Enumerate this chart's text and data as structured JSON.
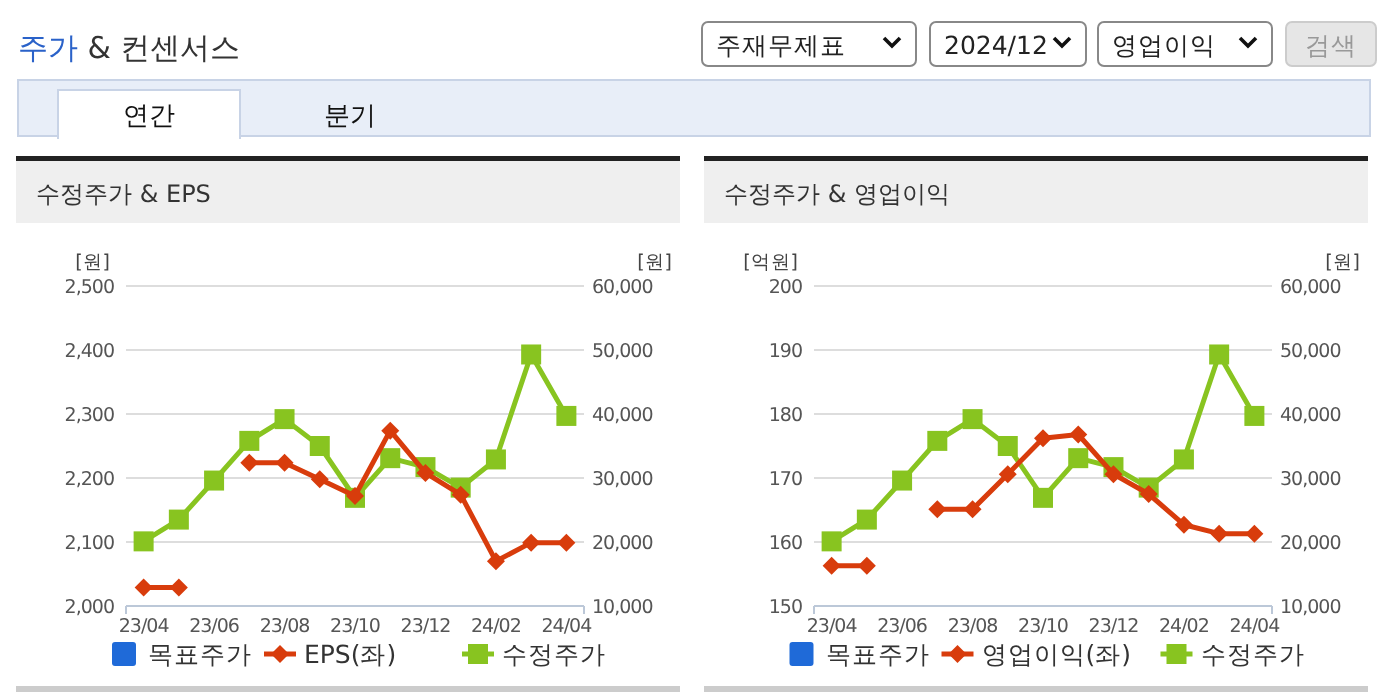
{
  "chart_data": [
    {
      "type": "other",
      "title": "주가 & 컨센서스",
      "annotations": [
        "주재무제표",
        "2024/12",
        "영업이익",
        "검색",
        "연간",
        "분기"
      ]
    },
    {
      "type": "line",
      "title": "수정주가 & EPS",
      "categories": [
        "23/04",
        null,
        "23/06",
        null,
        "23/08",
        null,
        "23/10",
        null,
        "23/12",
        null,
        "24/02",
        null,
        "24/04"
      ],
      "ylabel": "[원]",
      "y2label": "[원]",
      "ylim": [
        2000,
        2500
      ],
      "yticks": [
        {
          "value": 2000,
          "label": "2,000"
        },
        {
          "value": 2100,
          "label": "2,100"
        },
        {
          "value": 2200,
          "label": "2,200"
        },
        {
          "value": 2300,
          "label": "2,300"
        },
        {
          "value": 2400,
          "label": "2,400"
        },
        {
          "value": 2500,
          "label": "2,500"
        }
      ],
      "y2lim": [
        10000,
        60000
      ],
      "y2ticks": [
        {
          "value": 10000,
          "label": "10,000"
        },
        {
          "value": 20000,
          "label": "20,000"
        },
        {
          "value": 30000,
          "label": "30,000"
        },
        {
          "value": 40000,
          "label": "40,000"
        },
        {
          "value": 50000,
          "label": "50,000"
        },
        {
          "value": 60000,
          "label": "60,000"
        }
      ],
      "grid": "y",
      "legend": "bottom",
      "series": [
        {
          "name": "목표주가",
          "type": "bar",
          "color": "#1f6ad8",
          "values": [
            null,
            null,
            null,
            null,
            null,
            null,
            null,
            null,
            null,
            null,
            null,
            null,
            null
          ]
        },
        {
          "name": "EPS(좌)",
          "type": "line",
          "marker": "diamond",
          "color": "#d83c0c",
          "values": [
            2029,
            2029,
            null,
            2224,
            2224,
            2198,
            2172,
            2274,
            2208,
            2174,
            2070,
            2099,
            2099
          ]
        },
        {
          "name": "수정주가",
          "type": "line",
          "marker": "square",
          "axis": "y2",
          "color": "#88c420",
          "values": [
            20100,
            23500,
            29600,
            35800,
            39200,
            35000,
            26900,
            33100,
            31700,
            28500,
            32900,
            49300,
            39700
          ]
        }
      ]
    },
    {
      "type": "line",
      "title": "수정주가 & 영업이익",
      "categories": [
        "23/04",
        null,
        "23/06",
        null,
        "23/08",
        null,
        "23/10",
        null,
        "23/12",
        null,
        "24/02",
        null,
        "24/04"
      ],
      "ylabel": "[억원]",
      "y2label": "[원]",
      "ylim": [
        150,
        200
      ],
      "yticks": [
        150,
        160,
        170,
        180,
        190,
        200
      ],
      "y2lim": [
        10000,
        60000
      ],
      "y2ticks": [
        {
          "value": 10000,
          "label": "10,000"
        },
        {
          "value": 20000,
          "label": "20,000"
        },
        {
          "value": 30000,
          "label": "30,000"
        },
        {
          "value": 40000,
          "label": "40,000"
        },
        {
          "value": 50000,
          "label": "50,000"
        },
        {
          "value": 60000,
          "label": "60,000"
        }
      ],
      "grid": "y",
      "legend": "bottom",
      "series": [
        {
          "name": "목표주가",
          "type": "bar",
          "color": "#1f6ad8",
          "values": [
            null,
            null,
            null,
            null,
            null,
            null,
            null,
            null,
            null,
            null,
            null,
            null,
            null
          ]
        },
        {
          "name": "영업이익(좌)",
          "type": "line",
          "marker": "diamond",
          "color": "#d83c0c",
          "values": [
            156.3,
            156.3,
            null,
            165.1,
            165.1,
            170.6,
            176.2,
            176.8,
            170.6,
            167.5,
            162.7,
            161.3,
            161.3
          ]
        },
        {
          "name": "수정주가",
          "type": "line",
          "marker": "square",
          "axis": "y2",
          "color": "#88c420",
          "values": [
            20100,
            23500,
            29600,
            35800,
            39200,
            35000,
            26900,
            33100,
            31700,
            28500,
            32900,
            49300,
            39700
          ]
        }
      ]
    }
  ]
}
